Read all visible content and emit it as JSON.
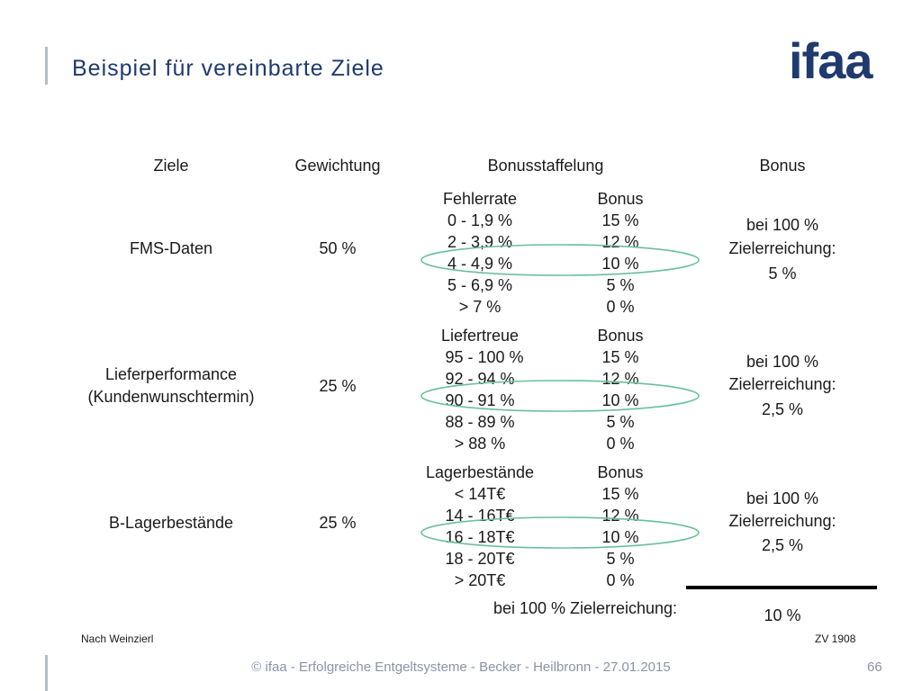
{
  "title": "Beispiel für vereinbarte Ziele",
  "logo": "ifaa",
  "headers": {
    "ziele": "Ziele",
    "gewichtung": "Gewichtung",
    "staffelung": "Bonusstaffelung",
    "bonus": "Bonus"
  },
  "rows": [
    {
      "ziel": "FMS-Daten",
      "gewichtung": "50 %",
      "sub_head": "Fehlerrate",
      "sub_bonus_head": "Bonus",
      "ranges": [
        "0 - 1,9 %",
        "2 - 3,9 %",
        "4 - 4,9 %",
        "5 - 6,9 %",
        "> 7 %"
      ],
      "boni": [
        "15 %",
        "12 %",
        "10 %",
        "5 %",
        "0 %"
      ],
      "bonus_l1": "bei 100 %",
      "bonus_l2": "Zielerreichung:",
      "bonus_val": "5 %"
    },
    {
      "ziel_l1": "Lieferperformance",
      "ziel_l2": "(Kundenwunschtermin)",
      "gewichtung": "25 %",
      "sub_head": "Liefertreue",
      "sub_bonus_head": "Bonus",
      "ranges": [
        "95 - 100 %",
        "92 - 94 %",
        "90 - 91 %",
        "88 - 89 %",
        "> 88 %"
      ],
      "boni": [
        "15 %",
        "12 %",
        "10 %",
        "5 %",
        "0 %"
      ],
      "bonus_l1": "bei 100 %",
      "bonus_l2": "Zielerreichung:",
      "bonus_val": "2,5 %"
    },
    {
      "ziel": "B-Lagerbestände",
      "gewichtung": "25 %",
      "sub_head": "Lagerbestände",
      "sub_bonus_head": "Bonus",
      "ranges": [
        "< 14T€",
        "14 - 16T€",
        "16 - 18T€",
        "18 - 20T€",
        "> 20T€"
      ],
      "boni": [
        "15 %",
        "12 %",
        "10 %",
        "5 %",
        "0 %"
      ],
      "bonus_l1": "bei 100 %",
      "bonus_l2": "Zielerreichung:",
      "bonus_val": "2,5 %"
    }
  ],
  "total_label": "bei 100 % Zielerreichung:",
  "total_value": "10 %",
  "source": "Nach Weinzierl",
  "ref": "ZV 1908",
  "footer": "© ifaa - Erfolgreiche Entgeltsysteme - Becker - Heilbronn - 27.01.2015",
  "page": "66",
  "colors": {
    "brand": "#1f3a6e",
    "ellipse": "#6bbf9a",
    "footer": "#8a94a8"
  }
}
